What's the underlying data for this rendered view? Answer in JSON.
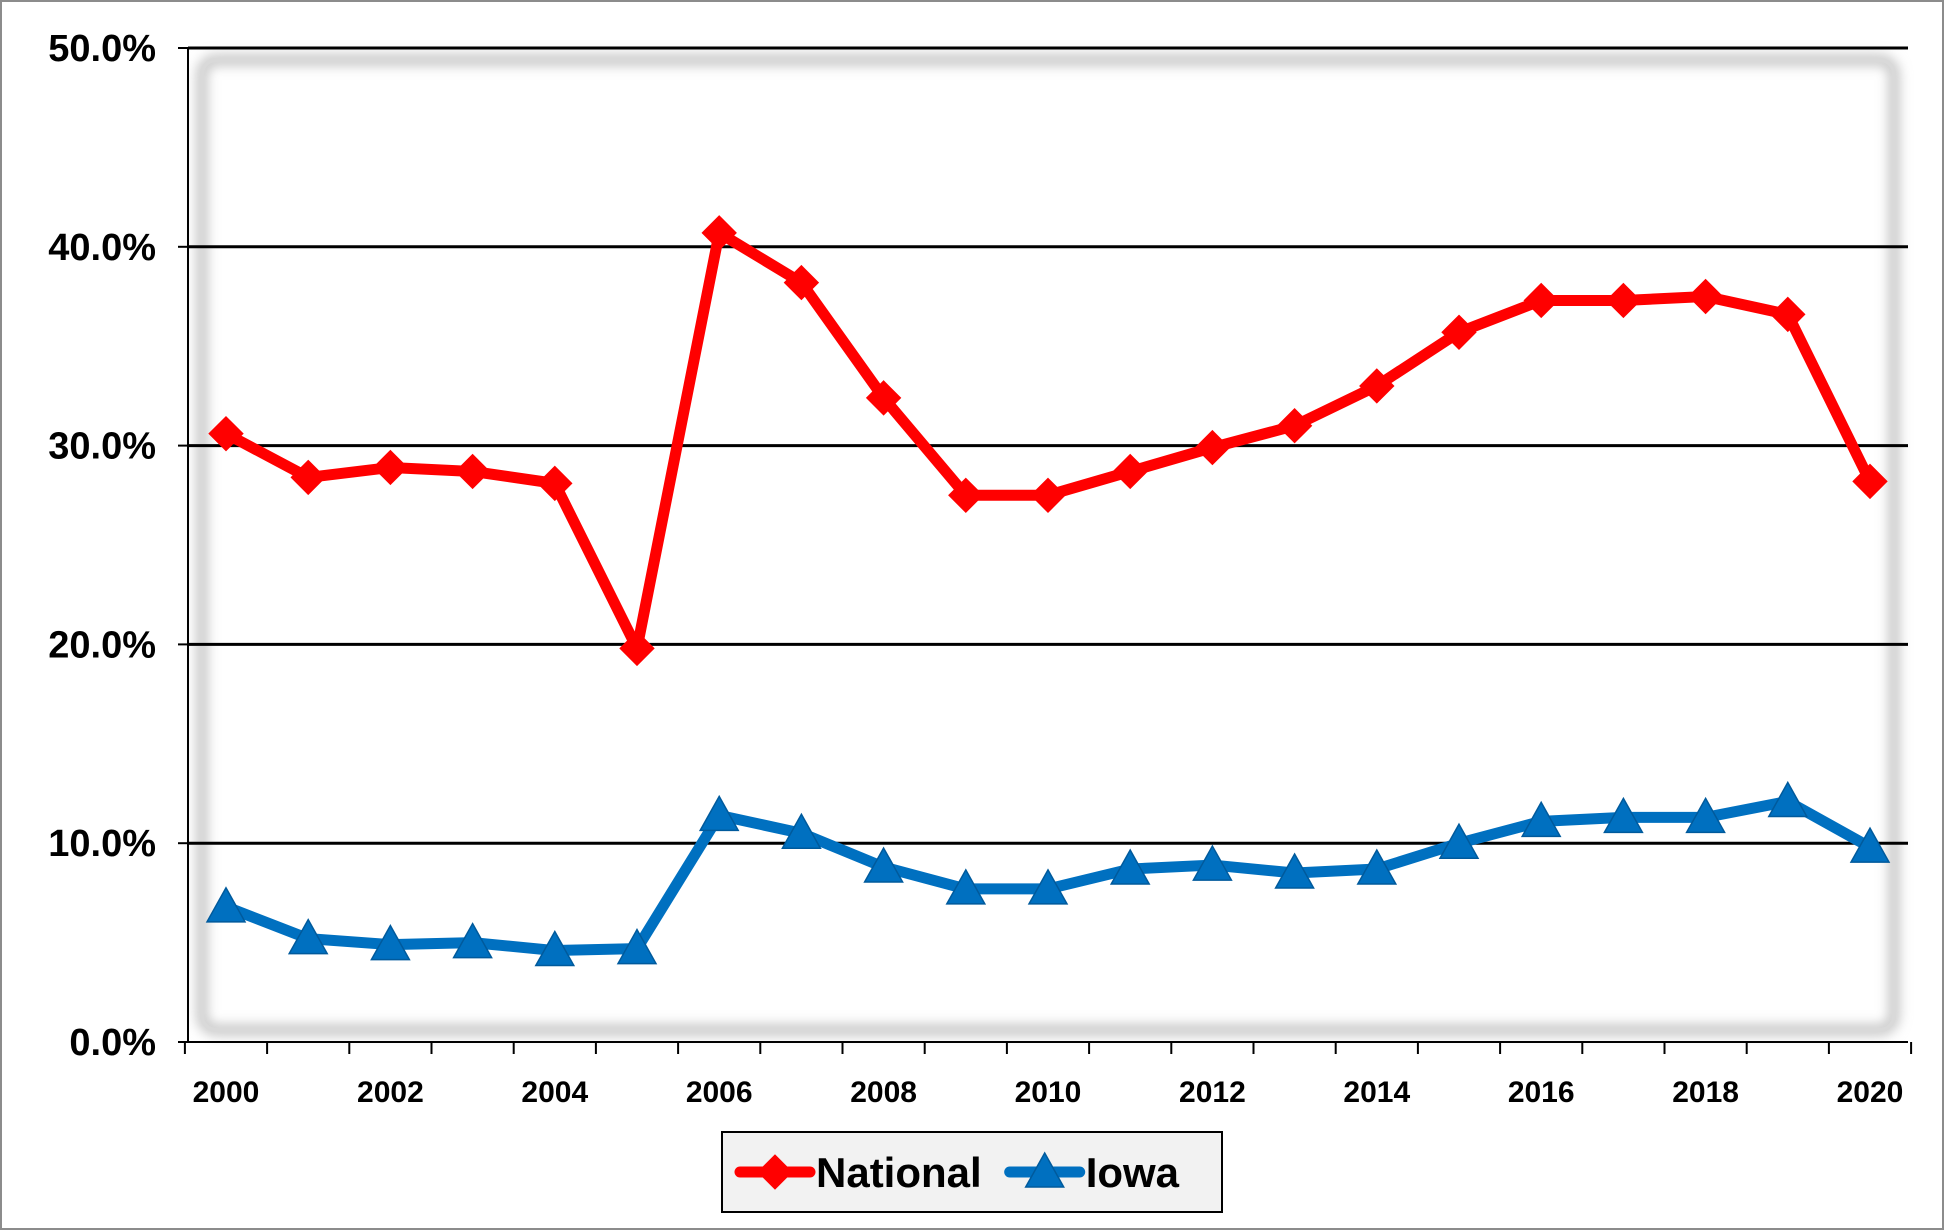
{
  "chart_data": {
    "type": "line",
    "title": "",
    "xlabel": "",
    "ylabel": "",
    "x": [
      2000,
      2001,
      2002,
      2003,
      2004,
      2005,
      2006,
      2007,
      2008,
      2009,
      2010,
      2011,
      2012,
      2013,
      2014,
      2015,
      2016,
      2017,
      2018,
      2019,
      2020
    ],
    "x_tick_labels": [
      "2000",
      "2002",
      "2004",
      "2006",
      "2008",
      "2010",
      "2012",
      "2014",
      "2016",
      "2018",
      "2020"
    ],
    "y_tick_labels": [
      "0.0%",
      "10.0%",
      "20.0%",
      "30.0%",
      "40.0%",
      "50.0%"
    ],
    "ylim": [
      0,
      50
    ],
    "grid": true,
    "legend_position": "bottom-center",
    "series": [
      {
        "name": "National",
        "color": "#ff0000",
        "marker": "diamond",
        "values": [
          30.6,
          28.4,
          28.9,
          28.7,
          28.1,
          19.8,
          40.7,
          38.2,
          32.4,
          27.5,
          27.5,
          28.7,
          29.9,
          31.0,
          33.0,
          35.7,
          37.3,
          37.3,
          37.5,
          36.6,
          28.2
        ]
      },
      {
        "name": "Iowa",
        "color": "#0070c0",
        "marker": "triangle",
        "values": [
          6.8,
          5.2,
          4.9,
          5.0,
          4.6,
          4.7,
          11.4,
          10.5,
          8.8,
          7.7,
          7.7,
          8.7,
          8.9,
          8.5,
          8.7,
          10.0,
          11.1,
          11.3,
          11.3,
          12.1,
          9.8
        ]
      }
    ]
  }
}
